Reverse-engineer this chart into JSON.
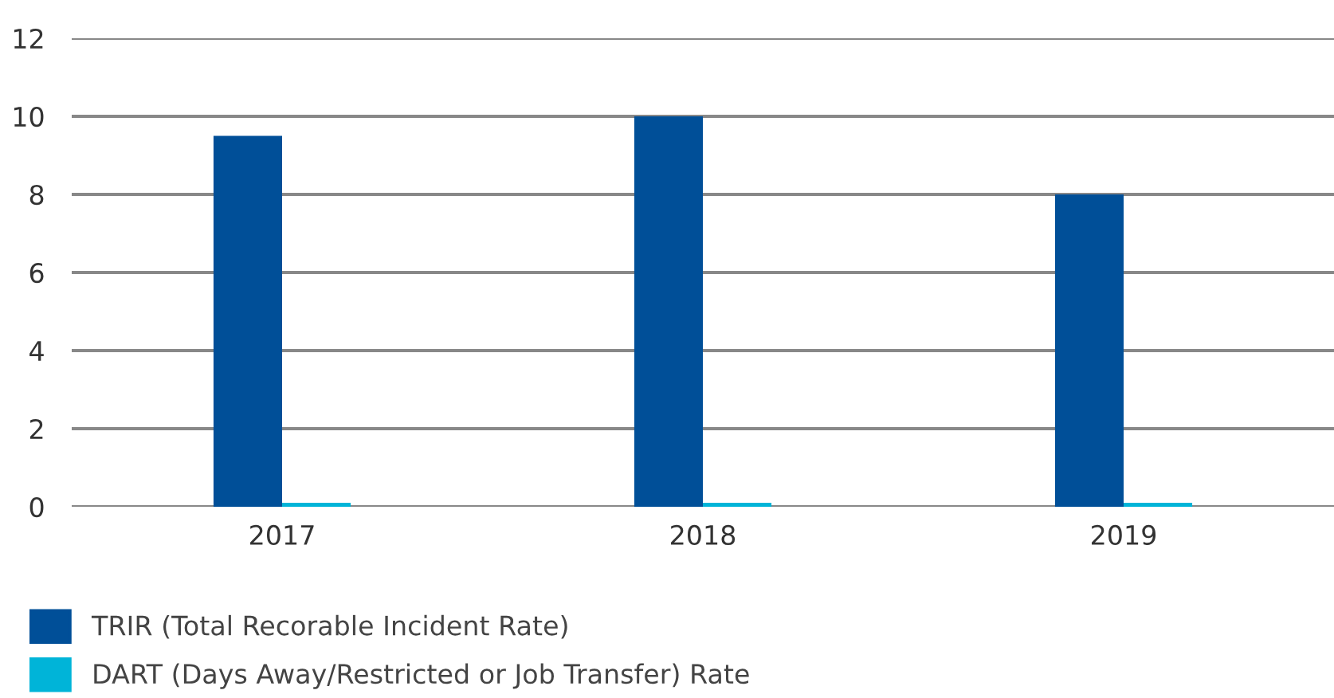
{
  "chart_data": {
    "type": "bar",
    "categories": [
      "2017",
      "2018",
      "2019"
    ],
    "series": [
      {
        "name": "TRIR (Total Recorable Incident Rate)",
        "color": "#004f98",
        "values": [
          9.5,
          10,
          8
        ]
      },
      {
        "name": "DART (Days Away/Restricted or Job Transfer) Rate",
        "color": "#00b4d8",
        "values": [
          0.1,
          0.1,
          0.1
        ]
      }
    ],
    "ylim": [
      0,
      12
    ],
    "yticks": [
      0,
      2,
      4,
      6,
      8,
      10,
      12
    ],
    "grid": "y",
    "legend": "bottom left"
  }
}
